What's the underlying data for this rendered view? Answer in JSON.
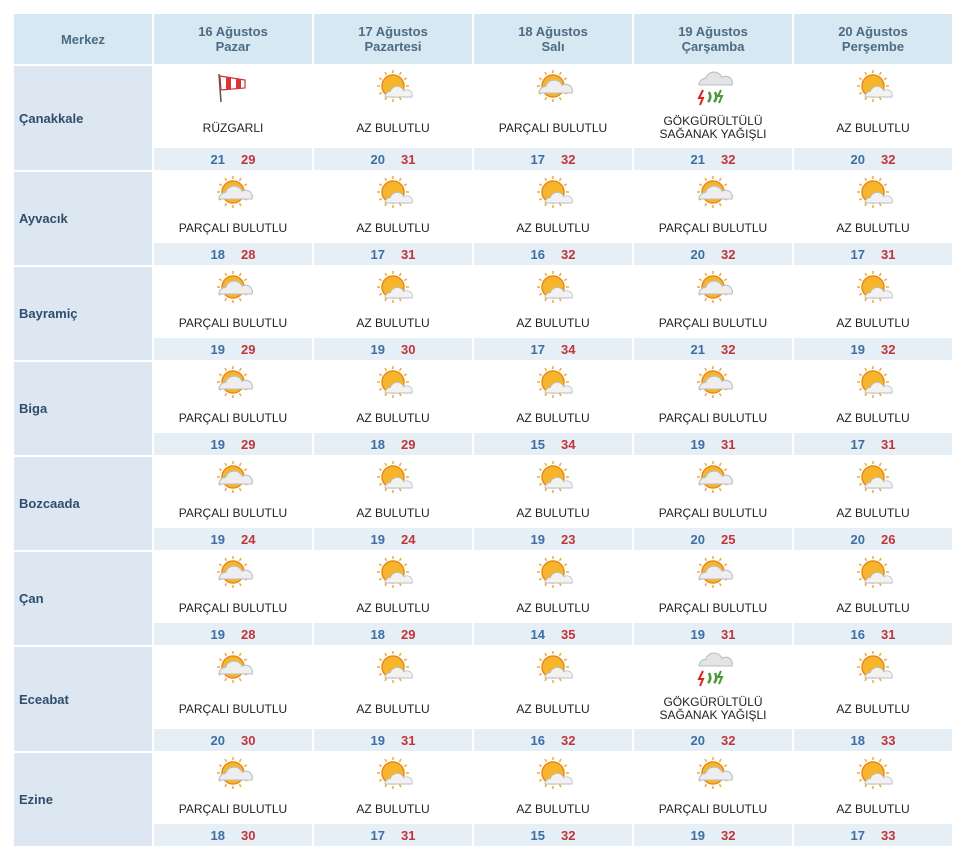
{
  "header": {
    "station": "Merkez",
    "days": [
      {
        "date": "16 Ağustos",
        "weekday": "Pazar"
      },
      {
        "date": "17 Ağustos",
        "weekday": "Pazartesi"
      },
      {
        "date": "18 Ağustos",
        "weekday": "Salı"
      },
      {
        "date": "19 Ağustos",
        "weekday": "Çarşamba"
      },
      {
        "date": "20 Ağustos",
        "weekday": "Perşembe"
      }
    ]
  },
  "rows": [
    {
      "city": "Çanakkale",
      "days": [
        {
          "condition": "RÜZGARLI",
          "min": 21,
          "max": 29
        },
        {
          "condition": "AZ BULUTLU",
          "min": 20,
          "max": 31
        },
        {
          "condition": "PARÇALI BULUTLU",
          "min": 17,
          "max": 32
        },
        {
          "condition": "GÖKGÜRÜLTÜLÜ SAĞANAK YAĞIŞLI",
          "min": 21,
          "max": 32
        },
        {
          "condition": "AZ BULUTLU",
          "min": 20,
          "max": 32
        }
      ]
    },
    {
      "city": "Ayvacık",
      "days": [
        {
          "condition": "PARÇALI BULUTLU",
          "min": 18,
          "max": 28
        },
        {
          "condition": "AZ BULUTLU",
          "min": 17,
          "max": 31
        },
        {
          "condition": "AZ BULUTLU",
          "min": 16,
          "max": 32
        },
        {
          "condition": "PARÇALI BULUTLU",
          "min": 20,
          "max": 32
        },
        {
          "condition": "AZ BULUTLU",
          "min": 17,
          "max": 31
        }
      ]
    },
    {
      "city": "Bayramiç",
      "days": [
        {
          "condition": "PARÇALI BULUTLU",
          "min": 19,
          "max": 29
        },
        {
          "condition": "AZ BULUTLU",
          "min": 19,
          "max": 30
        },
        {
          "condition": "AZ BULUTLU",
          "min": 17,
          "max": 34
        },
        {
          "condition": "PARÇALI BULUTLU",
          "min": 21,
          "max": 32
        },
        {
          "condition": "AZ BULUTLU",
          "min": 19,
          "max": 32
        }
      ]
    },
    {
      "city": "Biga",
      "days": [
        {
          "condition": "PARÇALI BULUTLU",
          "min": 19,
          "max": 29
        },
        {
          "condition": "AZ BULUTLU",
          "min": 18,
          "max": 29
        },
        {
          "condition": "AZ BULUTLU",
          "min": 15,
          "max": 34
        },
        {
          "condition": "PARÇALI BULUTLU",
          "min": 19,
          "max": 31
        },
        {
          "condition": "AZ BULUTLU",
          "min": 17,
          "max": 31
        }
      ]
    },
    {
      "city": "Bozcaada",
      "days": [
        {
          "condition": "PARÇALI BULUTLU",
          "min": 19,
          "max": 24
        },
        {
          "condition": "AZ BULUTLU",
          "min": 19,
          "max": 24
        },
        {
          "condition": "AZ BULUTLU",
          "min": 19,
          "max": 23
        },
        {
          "condition": "PARÇALI BULUTLU",
          "min": 20,
          "max": 25
        },
        {
          "condition": "AZ BULUTLU",
          "min": 20,
          "max": 26
        }
      ]
    },
    {
      "city": "Çan",
      "days": [
        {
          "condition": "PARÇALI BULUTLU",
          "min": 19,
          "max": 28
        },
        {
          "condition": "AZ BULUTLU",
          "min": 18,
          "max": 29
        },
        {
          "condition": "AZ BULUTLU",
          "min": 14,
          "max": 35
        },
        {
          "condition": "PARÇALI BULUTLU",
          "min": 19,
          "max": 31
        },
        {
          "condition": "AZ BULUTLU",
          "min": 16,
          "max": 31
        }
      ]
    },
    {
      "city": "Eceabat",
      "days": [
        {
          "condition": "PARÇALI BULUTLU",
          "min": 20,
          "max": 30
        },
        {
          "condition": "AZ BULUTLU",
          "min": 19,
          "max": 31
        },
        {
          "condition": "AZ BULUTLU",
          "min": 16,
          "max": 32
        },
        {
          "condition": "GÖKGÜRÜLTÜLÜ SAĞANAK YAĞIŞLI",
          "min": 20,
          "max": 32
        },
        {
          "condition": "AZ BULUTLU",
          "min": 18,
          "max": 33
        }
      ]
    },
    {
      "city": "Ezine",
      "days": [
        {
          "condition": "PARÇALI BULUTLU",
          "min": 18,
          "max": 30
        },
        {
          "condition": "AZ BULUTLU",
          "min": 17,
          "max": 31
        },
        {
          "condition": "AZ BULUTLU",
          "min": 15,
          "max": 32
        },
        {
          "condition": "PARÇALI BULUTLU",
          "min": 19,
          "max": 32
        },
        {
          "condition": "AZ BULUTLU",
          "min": 17,
          "max": 33
        }
      ]
    }
  ]
}
